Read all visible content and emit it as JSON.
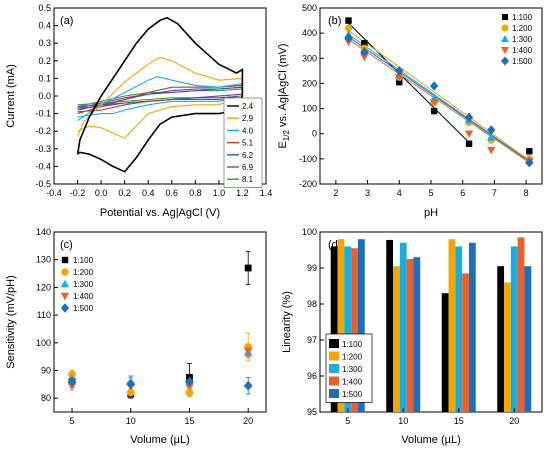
{
  "panels": [
    {
      "id": "a",
      "panel_label": "(a)",
      "chart_data": {
        "type": "line",
        "xlabel": "Potential vs. Ag|AgCl (V)",
        "ylabel": "Current (mA)",
        "xlim": [
          -0.4,
          1.4
        ],
        "ylim": [
          -0.5,
          0.5
        ],
        "xticks": [
          "-0.4",
          "-0.2",
          "0.0",
          "0.2",
          "0.4",
          "0.6",
          "0.8",
          "1.0",
          "1.2",
          "1.4"
        ],
        "yticks": [
          "-0.5",
          "-0.4",
          "-0.3",
          "-0.2",
          "-0.1",
          "0.0",
          "0.1",
          "0.2",
          "0.3",
          "0.4",
          "0.5"
        ],
        "legend_position": "bottom-right",
        "series": [
          {
            "name": "2.4",
            "color": "#000000",
            "x": [
              -0.2,
              -0.18,
              -0.1,
              0.0,
              0.1,
              0.2,
              0.3,
              0.4,
              0.5,
              0.56,
              0.65,
              0.8,
              1.0,
              1.15,
              1.2,
              1.2,
              1.15,
              1.0,
              0.8,
              0.6,
              0.5,
              0.4,
              0.3,
              0.2,
              0.1,
              0.0,
              -0.1,
              -0.18,
              -0.2
            ],
            "y": [
              -0.33,
              -0.25,
              -0.12,
              0.0,
              0.1,
              0.2,
              0.3,
              0.38,
              0.43,
              0.445,
              0.41,
              0.3,
              0.18,
              0.13,
              0.15,
              0.0,
              -0.08,
              -0.1,
              -0.1,
              -0.12,
              -0.16,
              -0.25,
              -0.35,
              -0.43,
              -0.4,
              -0.36,
              -0.33,
              -0.32,
              -0.33
            ]
          },
          {
            "name": "2.9",
            "color": "#f5a500",
            "x": [
              -0.2,
              -0.15,
              0.0,
              0.2,
              0.4,
              0.5,
              0.6,
              0.8,
              1.0,
              1.2,
              1.2,
              1.0,
              0.8,
              0.6,
              0.4,
              0.3,
              0.2,
              0.1,
              0.0,
              -0.1,
              -0.2
            ],
            "y": [
              -0.23,
              -0.15,
              -0.05,
              0.08,
              0.18,
              0.22,
              0.2,
              0.13,
              0.09,
              0.1,
              0.0,
              -0.05,
              -0.05,
              -0.06,
              -0.1,
              -0.17,
              -0.24,
              -0.21,
              -0.18,
              -0.17,
              -0.2
            ]
          },
          {
            "name": "4.0",
            "color": "#1aaee0",
            "x": [
              -0.2,
              0.0,
              0.2,
              0.4,
              0.48,
              0.6,
              0.8,
              1.0,
              1.2,
              1.2,
              1.0,
              0.8,
              0.6,
              0.4,
              0.2,
              0.1,
              0.0,
              -0.2
            ],
            "y": [
              -0.14,
              -0.05,
              0.02,
              0.09,
              0.11,
              0.09,
              0.06,
              0.05,
              0.07,
              0.0,
              -0.03,
              -0.03,
              -0.03,
              -0.05,
              -0.08,
              -0.1,
              -0.1,
              -0.12
            ]
          },
          {
            "name": "5.1",
            "color": "#c0392b",
            "x": [
              -0.2,
              0.0,
              0.2,
              0.4,
              0.6,
              0.8,
              1.0,
              1.2,
              1.2,
              1.0,
              0.8,
              0.6,
              0.4,
              0.2,
              0.0,
              -0.2
            ],
            "y": [
              -0.1,
              -0.06,
              -0.02,
              0.02,
              0.05,
              0.05,
              0.05,
              0.06,
              0.0,
              -0.02,
              -0.02,
              -0.02,
              -0.03,
              -0.05,
              -0.08,
              -0.09
            ]
          },
          {
            "name": "6.2",
            "color": "#1f5fb8",
            "x": [
              -0.2,
              0.0,
              0.2,
              0.4,
              0.6,
              0.8,
              1.0,
              1.2,
              1.2,
              1.0,
              0.8,
              0.6,
              0.4,
              0.2,
              0.0,
              -0.2
            ],
            "y": [
              -0.08,
              -0.05,
              -0.02,
              0.01,
              0.03,
              0.04,
              0.04,
              0.05,
              0.0,
              -0.01,
              -0.01,
              -0.02,
              -0.03,
              -0.04,
              -0.06,
              -0.07
            ]
          },
          {
            "name": "6.9",
            "color": "#8e3aa0",
            "x": [
              -0.2,
              0.0,
              0.2,
              0.4,
              0.6,
              0.8,
              1.0,
              1.2,
              1.2,
              1.0,
              0.8,
              0.6,
              0.4,
              0.2,
              0.0,
              -0.2
            ],
            "y": [
              -0.07,
              -0.04,
              -0.01,
              0.01,
              0.02,
              0.03,
              0.04,
              0.05,
              0.01,
              0.0,
              -0.01,
              -0.02,
              -0.03,
              -0.04,
              -0.05,
              -0.06
            ]
          },
          {
            "name": "8.1",
            "color": "#3a9a3a",
            "x": [
              -0.2,
              0.0,
              0.2,
              0.4,
              0.6,
              0.8,
              1.0,
              1.2,
              1.2,
              1.0,
              0.8,
              0.6,
              0.4,
              0.2,
              0.0,
              -0.2
            ],
            "y": [
              -0.06,
              -0.03,
              0.0,
              0.02,
              0.02,
              0.03,
              0.03,
              0.04,
              0.01,
              0.0,
              -0.01,
              -0.01,
              -0.02,
              -0.03,
              -0.04,
              -0.05
            ]
          }
        ]
      }
    },
    {
      "id": "b",
      "panel_label": "(b)",
      "chart_data": {
        "type": "scatter",
        "xlabel": "pH",
        "ylabel_main": "E",
        "ylabel_sub": "1/2",
        "ylabel_rest": " vs. Ag|AgCl (mV)",
        "xlim": [
          1.5,
          8.5
        ],
        "ylim": [
          -200,
          500
        ],
        "xticks": [
          "2",
          "3",
          "4",
          "5",
          "6",
          "7",
          "8"
        ],
        "yticks": [
          "-200",
          "-100",
          "0",
          "100",
          "200",
          "300",
          "400",
          "500"
        ],
        "legend_position": "top-right",
        "series": [
          {
            "name": "1:100",
            "color": "#000000",
            "marker": "square",
            "x": [
              2.4,
              2.9,
              4.0,
              5.1,
              6.2,
              8.1
            ],
            "y": [
              450,
              360,
              205,
              90,
              -40,
              -70
            ],
            "fit": [
              [
                2.4,
                440
              ],
              [
                6.2,
                -35
              ]
            ]
          },
          {
            "name": "1:200",
            "color": "#f5a500",
            "marker": "circle",
            "x": [
              2.4,
              2.9,
              4.0,
              5.1,
              6.2,
              6.9,
              8.1
            ],
            "y": [
              420,
              340,
              225,
              125,
              45,
              -25,
              -100
            ],
            "fit": [
              [
                2.4,
                410
              ],
              [
                8.1,
                -105
              ]
            ]
          },
          {
            "name": "1:300",
            "color": "#1aaee0",
            "marker": "triangle-up",
            "x": [
              2.4,
              2.9,
              4.0,
              5.1,
              6.2,
              6.9,
              8.1
            ],
            "y": [
              395,
              330,
              230,
              140,
              55,
              -15,
              -105
            ],
            "fit": [
              [
                2.4,
                395
              ],
              [
                8.1,
                -110
              ]
            ]
          },
          {
            "name": "1:400",
            "color": "#e8612c",
            "marker": "triangle-down",
            "x": [
              2.4,
              2.9,
              4.0,
              5.1,
              6.2,
              6.9,
              8.1
            ],
            "y": [
              365,
              305,
              225,
              125,
              0,
              -65,
              -110
            ],
            "fit": [
              [
                2.4,
                375
              ],
              [
                8.1,
                -115
              ]
            ]
          },
          {
            "name": "1:500",
            "color": "#1f6fb8",
            "marker": "diamond",
            "x": [
              2.4,
              2.9,
              4.0,
              5.1,
              6.2,
              6.9,
              8.1
            ],
            "y": [
              380,
              325,
              250,
              190,
              65,
              15,
              -115
            ],
            "fit": [
              [
                2.4,
                385
              ],
              [
                8.1,
                -110
              ]
            ]
          }
        ]
      }
    },
    {
      "id": "c",
      "panel_label": "(c)",
      "chart_data": {
        "type": "scatter",
        "xlabel": "Volume (µL)",
        "ylabel": "Sensitivity (mV/pH)",
        "categories": [
          "5",
          "10",
          "15",
          "20"
        ],
        "ylim": [
          75,
          140
        ],
        "yticks": [
          "80",
          "90",
          "100",
          "110",
          "120",
          "130",
          "140"
        ],
        "legend_position": "top-left",
        "series": [
          {
            "name": "1:100",
            "color": "#000000",
            "marker": "square",
            "values": [
              86.0,
              81.5,
              87.5,
              127.0
            ],
            "err": [
              2.0,
              1.5,
              5.0,
              6.0
            ]
          },
          {
            "name": "1:200",
            "color": "#f5a500",
            "marker": "circle",
            "values": [
              88.5,
              82.0,
              82.0,
              98.5
            ],
            "err": [
              1.5,
              1.5,
              1.5,
              5.0
            ]
          },
          {
            "name": "1:300",
            "color": "#1aaee0",
            "marker": "triangle-up",
            "values": [
              87.0,
              86.0,
              85.5,
              96.5
            ],
            "err": [
              1.5,
              1.5,
              1.5,
              2.0
            ]
          },
          {
            "name": "1:400",
            "color": "#e8612c",
            "marker": "triangle-down",
            "values": [
              84.5,
              84.5,
              84.5,
              97.0
            ],
            "err": [
              1.5,
              1.5,
              1.5,
              2.0
            ]
          },
          {
            "name": "1:500",
            "color": "#1f6fb8",
            "marker": "diamond",
            "values": [
              86.0,
              85.0,
              86.0,
              84.5
            ],
            "err": [
              1.5,
              3.0,
              2.0,
              3.0
            ]
          }
        ]
      }
    },
    {
      "id": "d",
      "panel_label": "(d)",
      "chart_data": {
        "type": "bar",
        "xlabel": "Volume (µL)",
        "ylabel": "Linearity (%)",
        "categories": [
          "5",
          "10",
          "15",
          "20"
        ],
        "ylim": [
          95,
          100
        ],
        "yticks": [
          "95",
          "96",
          "97",
          "98",
          "99",
          "100"
        ],
        "legend_position": "bottom-left",
        "series": [
          {
            "name": "1:100",
            "color": "#000000",
            "values": [
              99.6,
              99.78,
              98.3,
              99.05
            ]
          },
          {
            "name": "1:200",
            "color": "#f5a500",
            "values": [
              99.8,
              99.05,
              99.8,
              98.6
            ]
          },
          {
            "name": "1:300",
            "color": "#1aaee0",
            "values": [
              99.6,
              99.7,
              99.6,
              99.6
            ]
          },
          {
            "name": "1:400",
            "color": "#e8612c",
            "values": [
              99.55,
              99.25,
              98.85,
              99.85
            ]
          },
          {
            "name": "1:500",
            "color": "#1f6fb8",
            "values": [
              99.8,
              99.3,
              99.7,
              99.05
            ]
          }
        ]
      }
    }
  ]
}
